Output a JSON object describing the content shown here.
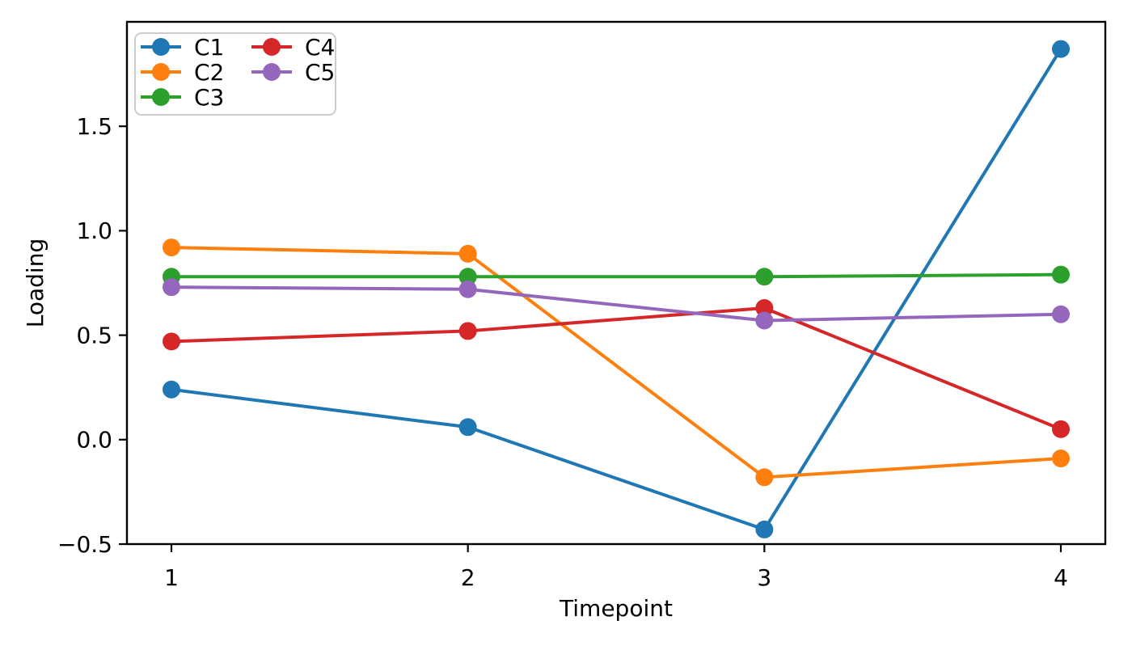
{
  "chart_data": {
    "type": "line",
    "title": "",
    "xlabel": "Timepoint",
    "ylabel": "Loading",
    "x": [
      1,
      2,
      3,
      4
    ],
    "series": [
      {
        "name": "C1",
        "color": "#1f77b4",
        "values": [
          0.24,
          0.06,
          -0.43,
          1.87
        ]
      },
      {
        "name": "C2",
        "color": "#ff7f0e",
        "values": [
          0.92,
          0.89,
          -0.18,
          -0.09
        ]
      },
      {
        "name": "C3",
        "color": "#2ca02c",
        "values": [
          0.78,
          0.78,
          0.78,
          0.79
        ]
      },
      {
        "name": "C4",
        "color": "#d62728",
        "values": [
          0.47,
          0.52,
          0.63,
          0.05
        ]
      },
      {
        "name": "C5",
        "color": "#9467bd",
        "values": [
          0.73,
          0.72,
          0.57,
          0.6
        ]
      }
    ],
    "xlim": [
      0.85,
      4.15
    ],
    "ylim": [
      -0.5,
      2.0
    ],
    "xticks": [
      1,
      2,
      3,
      4
    ],
    "xtick_labels": [
      "1",
      "2",
      "3",
      "4"
    ],
    "yticks": [
      -0.5,
      0.0,
      0.5,
      1.0,
      1.5
    ],
    "ytick_labels": [
      "−0.5",
      "0.0",
      "0.5",
      "1.0",
      "1.5"
    ],
    "grid": false,
    "legend": {
      "location": "upper left",
      "ncol": 2,
      "labels": [
        "C1",
        "C2",
        "C3",
        "C4",
        "C5"
      ]
    },
    "marker": "o",
    "line_style": "solid"
  },
  "style": {
    "background": "#ffffff",
    "text_color": "#000000",
    "spine_color": "#000000",
    "legend_border_color": "#cccccc",
    "legend_background": "#ffffff"
  }
}
